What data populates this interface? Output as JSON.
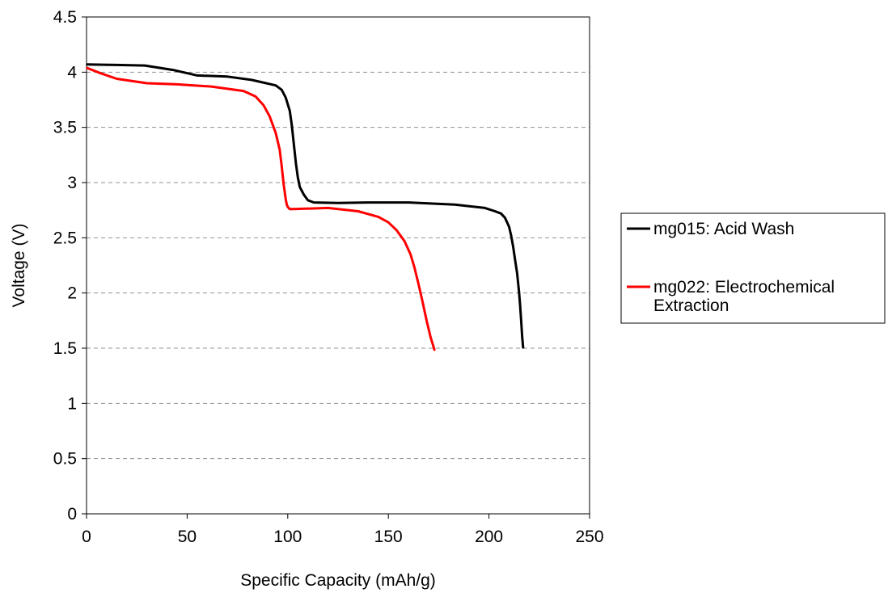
{
  "chart_data": {
    "type": "line",
    "xlabel": "Specific Capacity (mAh/g)",
    "ylabel": "Voltage (V)",
    "xlim": [
      0,
      250
    ],
    "ylim": [
      0,
      4.5
    ],
    "xticks": [
      0,
      50,
      100,
      150,
      200,
      250
    ],
    "yticks": [
      0,
      0.5,
      1,
      1.5,
      2,
      2.5,
      3,
      3.5,
      4,
      4.5
    ],
    "xtick_labels": [
      "0",
      "50",
      "100",
      "150",
      "200",
      "250"
    ],
    "ytick_labels": [
      "0",
      "0.5",
      "1",
      "1.5",
      "2",
      "2.5",
      "3",
      "3.5",
      "4",
      "4.5"
    ],
    "grid": "horizontal dashed",
    "legend_position": "right",
    "series": [
      {
        "name": "mg015: Acid Wash",
        "legend_lines": [
          "mg015: Acid Wash"
        ],
        "color": "#000000",
        "x": [
          0,
          15,
          29,
          43,
          55,
          70,
          82,
          94,
          97,
          99,
          101,
          102,
          103,
          104,
          105,
          106,
          108,
          110,
          113,
          125,
          140,
          160,
          183,
          198,
          203,
          206,
          208,
          210,
          211,
          212,
          213,
          214,
          215,
          215.5,
          216,
          216.5,
          217
        ],
        "y": [
          4.07,
          4.065,
          4.06,
          4.02,
          3.97,
          3.96,
          3.93,
          3.88,
          3.84,
          3.77,
          3.65,
          3.52,
          3.35,
          3.18,
          3.05,
          2.96,
          2.89,
          2.84,
          2.82,
          2.815,
          2.82,
          2.82,
          2.8,
          2.77,
          2.74,
          2.72,
          2.68,
          2.6,
          2.52,
          2.42,
          2.3,
          2.18,
          2.0,
          1.88,
          1.75,
          1.6,
          1.5
        ]
      },
      {
        "name": "mg022: Electrochemical Extraction",
        "legend_lines": [
          "mg022: Electrochemical",
          "Extraction"
        ],
        "color": "#ff0000",
        "x": [
          0,
          7,
          15,
          30,
          45,
          62,
          78,
          84,
          88,
          91,
          94,
          96,
          97,
          98,
          99,
          99.5,
          100,
          101,
          103,
          120,
          135,
          145,
          150,
          154,
          158,
          161,
          163,
          165,
          167,
          169,
          171,
          173
        ],
        "y": [
          4.04,
          3.99,
          3.94,
          3.9,
          3.89,
          3.87,
          3.83,
          3.78,
          3.7,
          3.6,
          3.45,
          3.3,
          3.15,
          2.98,
          2.85,
          2.8,
          2.78,
          2.76,
          2.76,
          2.77,
          2.74,
          2.69,
          2.64,
          2.57,
          2.47,
          2.35,
          2.23,
          2.08,
          1.92,
          1.75,
          1.6,
          1.48
        ]
      }
    ]
  }
}
